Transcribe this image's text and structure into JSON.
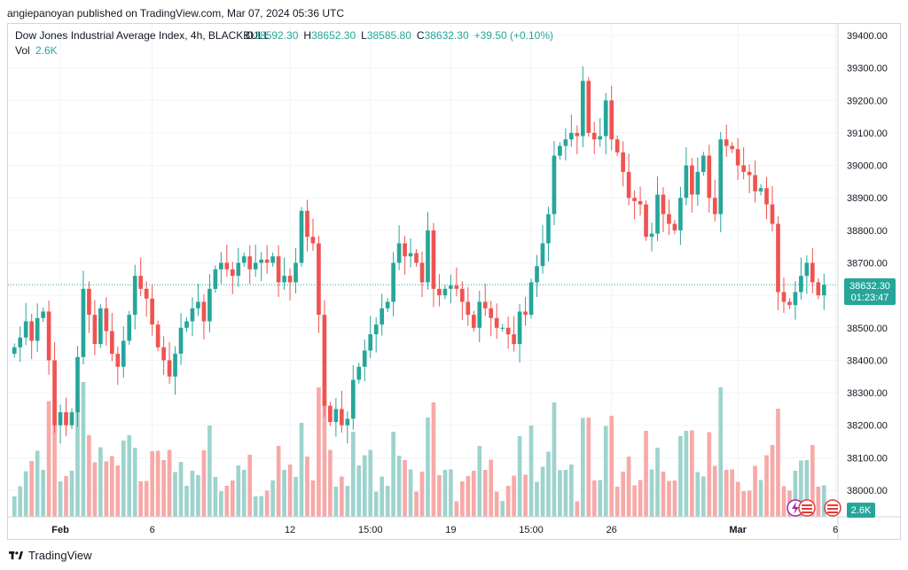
{
  "publisher_line": "angiepanoyan published on TradingView.com, Mar 07, 2024 05:36 UTC",
  "legend": {
    "symbol": "Dow Jones Industrial Average Index, 4h, BLACKBULL",
    "open_label": "O",
    "open": "38592.30",
    "high_label": "H",
    "high": "38652.30",
    "low_label": "L",
    "low": "38585.80",
    "close_label": "C",
    "close": "38632.30",
    "change": "+39.50 (+0.10%)",
    "vol_label": "Vol",
    "vol": "2.6K"
  },
  "price_tag": {
    "price": "38632.30",
    "countdown": "01:23:47"
  },
  "vol_tag": "2.6K",
  "footer": {
    "brand": "TradingView"
  },
  "colors": {
    "up": "#26a69a",
    "down": "#ef5350",
    "up_vol": "#9ed3cd",
    "down_vol": "#f7a9a7",
    "grid": "#f0f3fa",
    "axis_text": "#131722"
  },
  "chart_data": {
    "type": "candlestick",
    "title": "Dow Jones Industrial Average Index, 4h, BLACKBULL",
    "ylim": [
      37950,
      39450
    ],
    "y_ticks": [
      38000,
      38100,
      38200,
      38300,
      38400,
      38500,
      38600,
      38700,
      38800,
      38900,
      39000,
      39100,
      39200,
      39300,
      39400
    ],
    "y_tick_labels": [
      "38000.00",
      "38100.00",
      "38200.00",
      "38300.00",
      "38400.00",
      "38500.00",
      "38600.00",
      "38700.00",
      "38800.00",
      "38900.00",
      "39000.00",
      "39100.00",
      "39200.00",
      "39300.00",
      "39400.00"
    ],
    "x_ticks": [
      {
        "label": "Feb",
        "index": 8,
        "bold": true
      },
      {
        "label": "6",
        "index": 24,
        "bold": false
      },
      {
        "label": "12",
        "index": 48,
        "bold": false
      },
      {
        "label": "15:00",
        "index": 62,
        "bold": false
      },
      {
        "label": "19",
        "index": 76,
        "bold": false
      },
      {
        "label": "15:00",
        "index": 90,
        "bold": false
      },
      {
        "label": "26",
        "index": 104,
        "bold": false
      },
      {
        "label": "Mar",
        "index": 126,
        "bold": true
      },
      {
        "label": "6",
        "index": 143,
        "bold": false
      },
      {
        "label": "15:00",
        "index": 157,
        "bold": false
      }
    ],
    "last_price": 38632.3,
    "close": [
      38440,
      38470,
      38520,
      38460,
      38530,
      38550,
      38400,
      38200,
      38240,
      38200,
      38240,
      38410,
      38620,
      38540,
      38450,
      38560,
      38490,
      38420,
      38380,
      38460,
      38540,
      38660,
      38620,
      38590,
      38510,
      38440,
      38400,
      38350,
      38420,
      38500,
      38520,
      38560,
      38580,
      38520,
      38620,
      38680,
      38700,
      38680,
      38660,
      38700,
      38720,
      38680,
      38700,
      38710,
      38700,
      38720,
      38640,
      38660,
      38640,
      38700,
      38860,
      38780,
      38760,
      38540,
      38260,
      38210,
      38250,
      38200,
      38220,
      38340,
      38380,
      38430,
      38480,
      38510,
      38560,
      38580,
      38700,
      38760,
      38720,
      38730,
      38700,
      38640,
      38800,
      38620,
      38600,
      38620,
      38630,
      38620,
      38580,
      38540,
      38500,
      38580,
      38560,
      38530,
      38500,
      38500,
      38480,
      38450,
      38550,
      38540,
      38640,
      38690,
      38760,
      38850,
      39030,
      39060,
      39080,
      39100,
      39090,
      39260,
      39100,
      39080,
      39090,
      39200,
      39080,
      39040,
      38980,
      38900,
      38890,
      38880,
      38780,
      38790,
      38910,
      38850,
      38820,
      38800,
      38900,
      39000,
      38910,
      38980,
      39030,
      38900,
      38850,
      39080,
      39060,
      39050,
      39000,
      38980,
      38970,
      38920,
      38930,
      38880,
      38820,
      38610,
      38580,
      38570,
      38610,
      38660,
      38700,
      38640,
      38600,
      38632
    ]
  }
}
